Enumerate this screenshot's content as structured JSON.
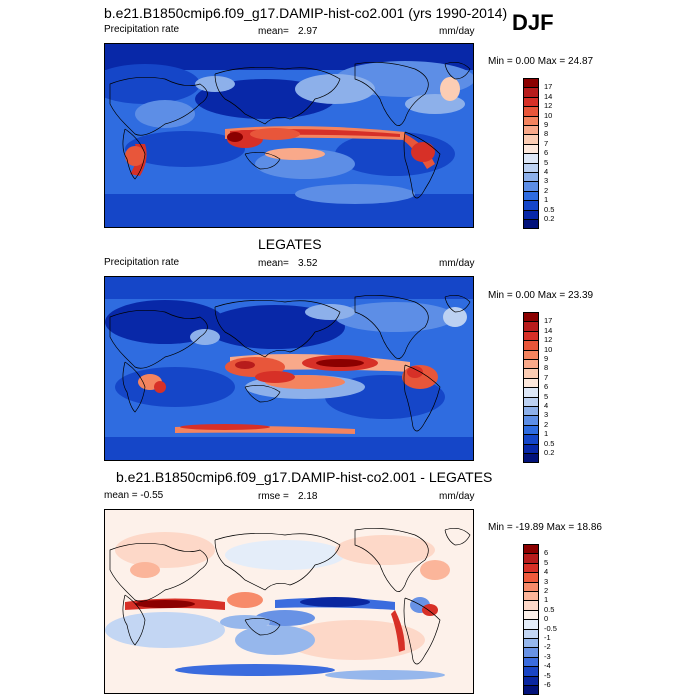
{
  "season": "DJF",
  "panels": [
    {
      "id": "model",
      "title": "b.e21.B1850cmip6.f09_g17.DAMIP-hist-co2.001 (yrs 1990-2014)",
      "left_label": "Precipitation rate",
      "mean_label": "mean=",
      "mean_value": "2.97",
      "units": "mm/day",
      "range_text": "Min =  0.00 Max =  24.87",
      "colorbar_labels": [
        "17",
        "14",
        "12",
        "10",
        "9",
        "8",
        "7",
        "6",
        "5",
        "4",
        "3",
        "2",
        "1",
        "0.5",
        "0.2"
      ],
      "colors": [
        "#8b0000",
        "#b71c1c",
        "#d73027",
        "#e8563a",
        "#f4845f",
        "#f9a98a",
        "#fccdb4",
        "#fde8dc",
        "#dde7f7",
        "#bcd1f2",
        "#8db0ea",
        "#5d8ee6",
        "#2f6ce0",
        "#1546c8",
        "#0828a8",
        "#02127a"
      ]
    },
    {
      "id": "obs",
      "title": "LEGATES",
      "left_label": "Precipitation rate",
      "mean_label": "mean=",
      "mean_value": "3.52",
      "units": "mm/day",
      "range_text": "Min =  0.00 Max =  23.39",
      "colorbar_labels": [
        "17",
        "14",
        "12",
        "10",
        "9",
        "8",
        "7",
        "6",
        "5",
        "4",
        "3",
        "2",
        "1",
        "0.5",
        "0.2"
      ],
      "colors": [
        "#8b0000",
        "#b71c1c",
        "#d73027",
        "#e8563a",
        "#f4845f",
        "#f9a98a",
        "#fccdb4",
        "#fde8dc",
        "#dde7f7",
        "#bcd1f2",
        "#8db0ea",
        "#5d8ee6",
        "#2f6ce0",
        "#1546c8",
        "#0828a8",
        "#02127a"
      ]
    },
    {
      "id": "diff",
      "title": "b.e21.B1850cmip6.f09_g17.DAMIP-hist-co2.001 - LEGATES",
      "left_label": "mean =  -0.55",
      "mean_label": "rmse =",
      "mean_value": "2.18",
      "units": "mm/day",
      "range_text": "Min = -19.89 Max =  18.86",
      "colorbar_labels": [
        "6",
        "5",
        "4",
        "3",
        "2",
        "1",
        "0.5",
        "0",
        "-0.5",
        "-1",
        "-2",
        "-3",
        "-4",
        "-5",
        "-6"
      ],
      "colors": [
        "#8b0000",
        "#b71c1c",
        "#d73027",
        "#ef5a3c",
        "#f78b6a",
        "#fbb59a",
        "#fdd8c8",
        "#fdf1ea",
        "#e4edf9",
        "#c3d6f3",
        "#96b7ec",
        "#6892e5",
        "#3b6cde",
        "#1a45c4",
        "#0a27a0",
        "#02127a"
      ]
    }
  ]
}
